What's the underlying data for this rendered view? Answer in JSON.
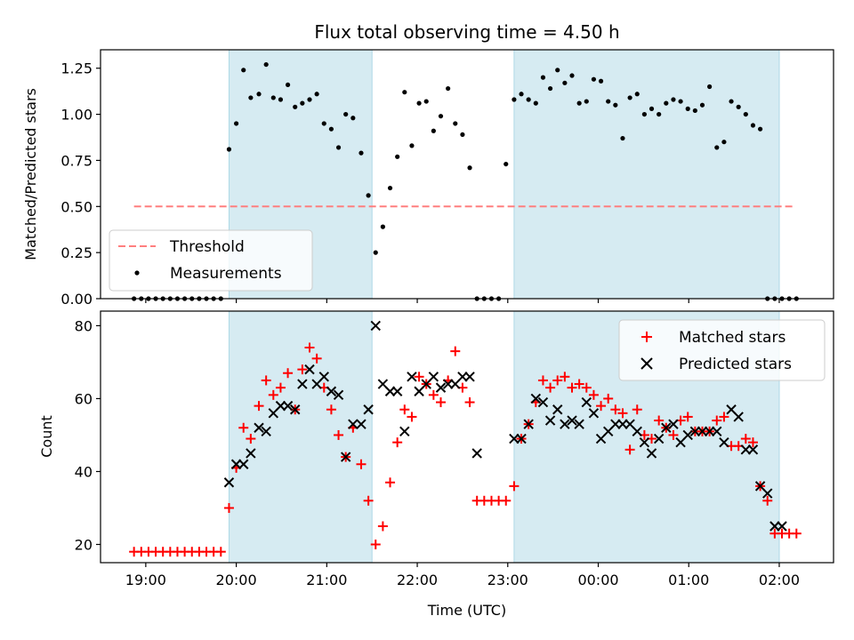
{
  "chart_data": [
    {
      "type": "scatter",
      "title": "Flux total observing time = 4.50 h",
      "xlabel": "",
      "ylabel": "Matched/Predicted stars",
      "ylim": [
        0,
        1.35
      ],
      "xlim_hours": [
        18.5,
        26.6
      ],
      "y_ticks": [
        "0.00",
        "0.25",
        "0.50",
        "0.75",
        "1.00",
        "1.25"
      ],
      "y_tick_values": [
        0,
        0.25,
        0.5,
        0.75,
        1.0,
        1.25
      ],
      "legend_position": "lower-left",
      "legend": {
        "threshold": "Threshold",
        "measurements": "Measurements"
      },
      "threshold": {
        "name": "Threshold",
        "value": 0.5,
        "x_start": 18.87,
        "x_end": 26.18,
        "color": "#ff7f7f"
      },
      "shaded_intervals": [
        [
          19.92,
          21.5
        ],
        [
          23.07,
          26.0
        ]
      ],
      "series": [
        {
          "name": "Measurements",
          "color": "#000000",
          "x": [
            18.87,
            18.95,
            19.03,
            19.11,
            19.19,
            19.27,
            19.35,
            19.43,
            19.51,
            19.59,
            19.67,
            19.75,
            19.83,
            19.92,
            20.0,
            20.08,
            20.16,
            20.25,
            20.33,
            20.41,
            20.49,
            20.57,
            20.65,
            20.73,
            20.81,
            20.89,
            20.97,
            21.05,
            21.13,
            21.21,
            21.29,
            21.38,
            21.46,
            21.54,
            21.62,
            21.7,
            21.78,
            21.86,
            21.94,
            22.02,
            22.1,
            22.18,
            22.26,
            22.34,
            22.42,
            22.5,
            22.58,
            22.66,
            22.74,
            22.82,
            22.9,
            22.98,
            23.07,
            23.15,
            23.23,
            23.31,
            23.39,
            23.47,
            23.55,
            23.63,
            23.71,
            23.79,
            23.87,
            23.95,
            24.03,
            24.11,
            24.19,
            24.27,
            24.35,
            24.43,
            24.51,
            24.59,
            24.67,
            24.75,
            24.83,
            24.91,
            24.99,
            25.07,
            25.15,
            25.23,
            25.31,
            25.39,
            25.47,
            25.55,
            25.63,
            25.71,
            25.79,
            25.87,
            25.95,
            26.03,
            26.11,
            26.19
          ],
          "y": [
            0,
            0,
            0,
            0,
            0,
            0,
            0,
            0,
            0,
            0,
            0,
            0,
            0,
            0.81,
            0.95,
            1.24,
            1.09,
            1.11,
            1.27,
            1.09,
            1.08,
            1.16,
            1.04,
            1.06,
            1.08,
            1.11,
            0.95,
            0.92,
            0.82,
            1.0,
            0.98,
            0.79,
            0.56,
            0.25,
            0.39,
            0.6,
            0.77,
            1.12,
            0.83,
            1.06,
            1.07,
            0.91,
            0.99,
            1.14,
            0.95,
            0.89,
            0.71,
            0,
            0,
            0,
            0,
            0.73,
            1.08,
            1.11,
            1.08,
            1.06,
            1.2,
            1.14,
            1.24,
            1.17,
            1.21,
            1.06,
            1.07,
            1.19,
            1.18,
            1.07,
            1.05,
            0.87,
            1.09,
            1.11,
            1.0,
            1.03,
            1.0,
            1.06,
            1.08,
            1.07,
            1.03,
            1.02,
            1.05,
            1.15,
            0.82,
            0.85,
            1.07,
            1.04,
            1.0,
            0.94,
            0.92,
            0,
            0,
            0,
            0,
            0
          ],
          "visible_count": 92
        }
      ]
    },
    {
      "type": "scatter",
      "title": "",
      "xlabel": "Time (UTC)",
      "ylabel": "Count",
      "ylim": [
        15,
        84
      ],
      "xlim_hours": [
        18.5,
        26.6
      ],
      "y_ticks": [
        "20",
        "40",
        "60",
        "80"
      ],
      "y_tick_values": [
        20,
        40,
        60,
        80
      ],
      "x_ticks": [
        "19:00",
        "20:00",
        "21:00",
        "22:00",
        "23:00",
        "00:00",
        "01:00",
        "02:00"
      ],
      "x_tick_hours": [
        19,
        20,
        21,
        22,
        23,
        24,
        25,
        26
      ],
      "legend_position": "upper-right",
      "legend": {
        "matched": "Matched stars",
        "predicted": "Predicted stars"
      },
      "shaded_intervals": [
        [
          19.92,
          21.5
        ],
        [
          23.07,
          26.0
        ]
      ],
      "series": [
        {
          "name": "Matched stars",
          "marker": "+",
          "color": "#ff0000",
          "x": [
            18.87,
            18.95,
            19.03,
            19.11,
            19.19,
            19.27,
            19.35,
            19.43,
            19.51,
            19.59,
            19.67,
            19.75,
            19.83,
            19.92,
            20.0,
            20.08,
            20.16,
            20.25,
            20.33,
            20.41,
            20.49,
            20.57,
            20.65,
            20.73,
            20.81,
            20.89,
            20.97,
            21.05,
            21.13,
            21.21,
            21.29,
            21.38,
            21.46,
            21.54,
            21.62,
            21.7,
            21.78,
            21.86,
            21.94,
            22.02,
            22.1,
            22.18,
            22.26,
            22.34,
            22.42,
            22.5,
            22.58,
            22.66,
            22.74,
            22.82,
            22.9,
            22.98,
            23.07,
            23.15,
            23.23,
            23.31,
            23.39,
            23.47,
            23.55,
            23.63,
            23.71,
            23.79,
            23.87,
            23.95,
            24.03,
            24.11,
            24.19,
            24.27,
            24.35,
            24.43,
            24.51,
            24.59,
            24.67,
            24.75,
            24.83,
            24.91,
            24.99,
            25.07,
            25.15,
            25.23,
            25.31,
            25.39,
            25.47,
            25.55,
            25.63,
            25.71,
            25.79,
            25.87,
            25.95,
            26.03,
            26.11,
            26.19
          ],
          "y": [
            18,
            18,
            18,
            18,
            18,
            18,
            18,
            18,
            18,
            18,
            18,
            18,
            18,
            30,
            41,
            52,
            49,
            58,
            65,
            61,
            63,
            67,
            57,
            68,
            74,
            71,
            63,
            57,
            50,
            44,
            52,
            42,
            32,
            20,
            25,
            37,
            48,
            57,
            55,
            66,
            64,
            61,
            59,
            65,
            73,
            63,
            59,
            32,
            32,
            32,
            32,
            32,
            36,
            49,
            53,
            59,
            65,
            63,
            65,
            66,
            63,
            64,
            63,
            61,
            58,
            60,
            57,
            56,
            46,
            57,
            50,
            49,
            54,
            52,
            50,
            54,
            55,
            51,
            51,
            51,
            54,
            55,
            47,
            47,
            49,
            48,
            36,
            32,
            23,
            23,
            23,
            23
          ],
          "visible_count": 92
        },
        {
          "name": "Predicted stars",
          "marker": "x",
          "color": "#000000",
          "x": [
            19.92,
            20.0,
            20.08,
            20.16,
            20.25,
            20.33,
            20.41,
            20.49,
            20.57,
            20.65,
            20.73,
            20.81,
            20.89,
            20.97,
            21.05,
            21.13,
            21.21,
            21.29,
            21.38,
            21.46,
            21.54,
            21.62,
            21.7,
            21.78,
            21.86,
            21.94,
            22.02,
            22.1,
            22.18,
            22.26,
            22.34,
            22.42,
            22.5,
            22.58,
            22.66,
            23.07,
            23.15,
            23.23,
            23.31,
            23.39,
            23.47,
            23.55,
            23.63,
            23.71,
            23.79,
            23.87,
            23.95,
            24.03,
            24.11,
            24.19,
            24.27,
            24.35,
            24.43,
            24.51,
            24.59,
            24.67,
            24.75,
            24.83,
            24.91,
            24.99,
            25.07,
            25.15,
            25.23,
            25.31,
            25.39,
            25.47,
            25.55,
            25.63,
            25.71,
            25.79,
            25.87,
            25.95,
            26.03
          ],
          "y": [
            37,
            42,
            42,
            45,
            52,
            51,
            56,
            58,
            58,
            57,
            64,
            68,
            64,
            66,
            62,
            61,
            44,
            53,
            53,
            57,
            80,
            64,
            62,
            62,
            51,
            66,
            62,
            64,
            66,
            63,
            64,
            64,
            66,
            66,
            45,
            49,
            49,
            53,
            60,
            59,
            54,
            57,
            53,
            54,
            53,
            59,
            56,
            49,
            51,
            53,
            53,
            53,
            51,
            48,
            45,
            49,
            52,
            53,
            48,
            50,
            51,
            51,
            51,
            51,
            48,
            57,
            55,
            46,
            46,
            36,
            34,
            25,
            25
          ],
          "visible_count": 73
        }
      ]
    }
  ]
}
